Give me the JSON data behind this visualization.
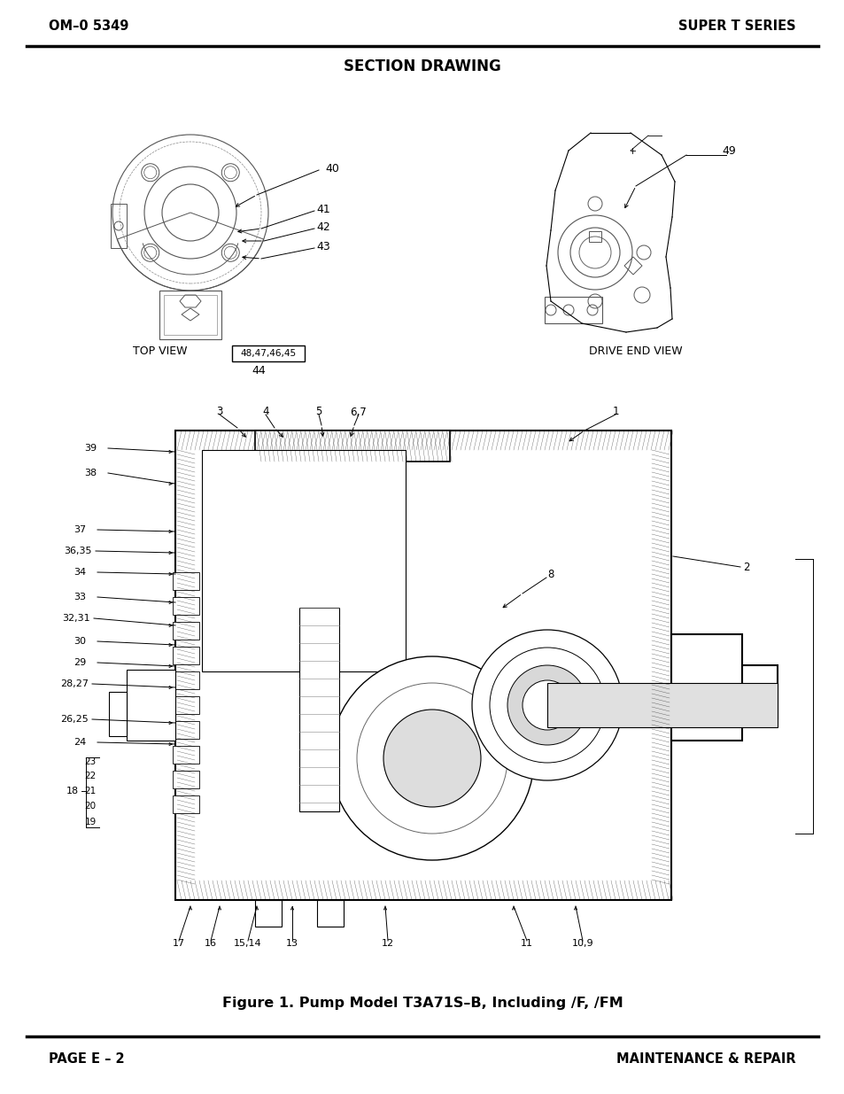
{
  "bg_color": "#ffffff",
  "header_left": "OM–0 5349",
  "header_right": "SUPER T SERIES",
  "section_title": "SECTION DRAWING",
  "footer_left": "PAGE E – 2",
  "footer_right": "MAINTENANCE & REPAIR",
  "figure_caption": "Figure 1. Pump Model T3A71S–B, Including /F, /FM",
  "top_view_label": "TOP VIEW",
  "drive_end_label": "DRIVE END VIEW",
  "label_40": "40",
  "label_41": "41",
  "label_42": "42",
  "label_43": "43",
  "label_44": "44",
  "label_49": "49",
  "box_label": "48,47,46,45",
  "label_1": "1",
  "label_2": "2",
  "label_3": "3",
  "label_4": "4",
  "label_5": "5",
  "label_67": "6,7",
  "label_8": "8",
  "label_9_10": "10,9",
  "label_11": "11",
  "label_12": "12",
  "label_13": "13",
  "label_1415": "15,14",
  "label_16": "16",
  "label_17": "17",
  "label_18": "18",
  "label_19": "19",
  "label_20": "20",
  "label_21": "21",
  "label_22": "22",
  "label_23": "23",
  "label_24": "24",
  "label_2526": "26,25",
  "label_2728": "28,27",
  "label_29": "29",
  "label_30": "30",
  "label_3132": "32,31",
  "label_33": "33",
  "label_34": "34",
  "label_3536": "36,35",
  "label_37": "37",
  "label_38": "38",
  "label_39": "39"
}
